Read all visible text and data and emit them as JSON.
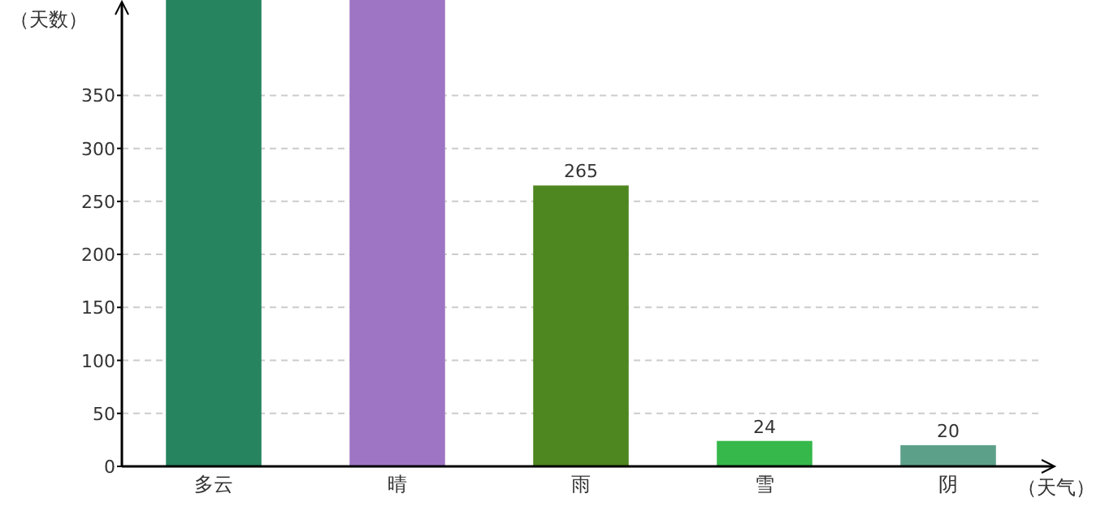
{
  "chart_data": {
    "type": "bar",
    "ylabel": "（天数）",
    "xlabel": "（天气）",
    "categories": [
      "多云",
      "晴",
      "雨",
      "雪",
      "阴"
    ],
    "values": [
      440,
      440,
      265,
      24,
      20
    ],
    "value_labels": [
      null,
      null,
      "265",
      "24",
      "20"
    ],
    "colors": [
      "#26845f",
      "#9d75c4",
      "#4e8620",
      "#36b84b",
      "#5da08a"
    ],
    "ylim": [
      0,
      440
    ],
    "yticks": [
      0,
      50,
      100,
      150,
      200,
      250,
      300,
      350
    ],
    "grid": "y"
  }
}
